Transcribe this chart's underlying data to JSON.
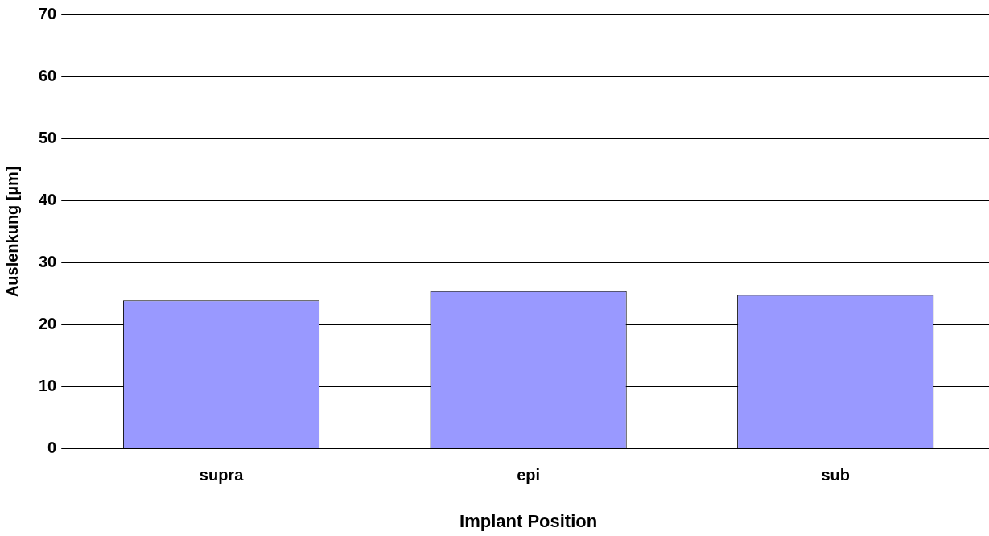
{
  "chart_data": {
    "type": "bar",
    "xlabel": "Implant Position",
    "ylabel": "Auslenkung [µm]",
    "categories": [
      "supra",
      "epi",
      "sub"
    ],
    "series": [
      {
        "color": "#9999ff",
        "values": [
          23.9,
          25.4,
          24.8
        ]
      }
    ],
    "ylim": [
      0,
      70
    ],
    "yticks": [
      0,
      10,
      20,
      30,
      40,
      50,
      60,
      70
    ],
    "grid": "y",
    "legend": false
  }
}
